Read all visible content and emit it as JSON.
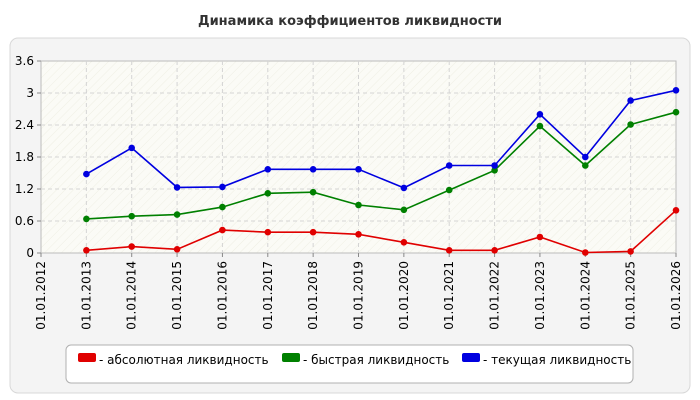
{
  "chart_data": {
    "type": "line",
    "title": "Динамика коэффициентов ликвидности",
    "xlabel": "",
    "ylabel": "",
    "categories": [
      "01.01.2012",
      "01.01.2013",
      "01.01.2014",
      "01.01.2015",
      "01.01.2016",
      "01.01.2017",
      "01.01.2018",
      "01.01.2019",
      "01.01.2020",
      "01.01.2021",
      "01.01.2022",
      "01.01.2023",
      "01.01.2024",
      "01.01.2025",
      "01.01.2026"
    ],
    "ylim": [
      0,
      3.6
    ],
    "y_ticks": [
      "0",
      "0.6",
      "1.2",
      "1.8",
      "2.4",
      "3",
      "3.6"
    ],
    "grid": true,
    "legend_position": "bottom",
    "series": [
      {
        "name": "- абсолютная ликвидность",
        "color": "#e00000",
        "values": [
          null,
          0.05,
          0.12,
          0.07,
          0.43,
          0.39,
          0.39,
          0.35,
          0.2,
          0.05,
          0.05,
          0.3,
          0.01,
          0.03,
          0.8
        ]
      },
      {
        "name": "- быстрая ликвидность",
        "color": "#008000",
        "values": [
          null,
          0.64,
          0.69,
          0.72,
          0.86,
          1.12,
          1.14,
          0.9,
          0.81,
          1.18,
          1.55,
          2.38,
          1.64,
          2.41,
          2.64
        ]
      },
      {
        "name": "- текущая ликвидность",
        "color": "#0000e0",
        "values": [
          null,
          1.48,
          1.97,
          1.23,
          1.24,
          1.57,
          1.57,
          1.57,
          1.22,
          1.64,
          1.64,
          2.6,
          1.8,
          2.86,
          3.05
        ]
      }
    ]
  }
}
